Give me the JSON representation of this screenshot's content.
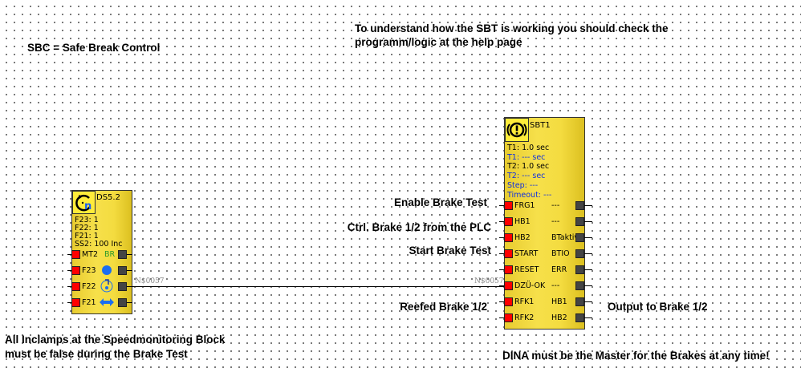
{
  "notes": {
    "sbc": "SBC = Safe Break Control",
    "help_line1": "To understand how the SBT is working you should check the",
    "help_line2": "programm/logic at the help page",
    "inclamps_line1": "All Inclamps at the Speedmonitoring Block",
    "inclamps_line2": "must be false during the Brake Test",
    "dina": "DINA must be the Master for the Brakes at any time!",
    "enable": "Enable Brake Test",
    "ctrl": "Ctrl. Brake 1/2 from the PLC",
    "start": "Start Brake Test",
    "reefed": "Reefed Brake 1/2",
    "output": "Output to Brake 1/2"
  },
  "ds": {
    "name": "DS5.2",
    "params": [
      "F23:  1",
      "F22:  1",
      "F21:  1",
      "SS2: 100 Inc"
    ],
    "inputs": [
      "MT2",
      "F23",
      "F22",
      "F21"
    ],
    "mt2_out": "BR"
  },
  "sbt": {
    "name": "SBT1",
    "params": [
      {
        "text": "T1: 1.0 sec",
        "color": "#000000"
      },
      {
        "text": "T1: --- sec",
        "color": "#1030e0"
      },
      {
        "text": "T2: 1.0 sec",
        "color": "#000000"
      },
      {
        "text": "T2: --- sec",
        "color": "#1030e0"
      },
      {
        "text": "Step: ---",
        "color": "#1030e0"
      },
      {
        "text": "Timeout: ---",
        "color": "#1030e0"
      }
    ],
    "inputs": [
      "FRG1",
      "HB1",
      "HB2",
      "START",
      "RESET",
      "DZÜ-OK",
      "RFK1",
      "RFK2"
    ],
    "outputs": [
      "---",
      "---",
      "BTaktiv",
      "BTIO",
      "ERR",
      "---",
      "HB1",
      "HB2"
    ]
  },
  "net": "N$0057"
}
